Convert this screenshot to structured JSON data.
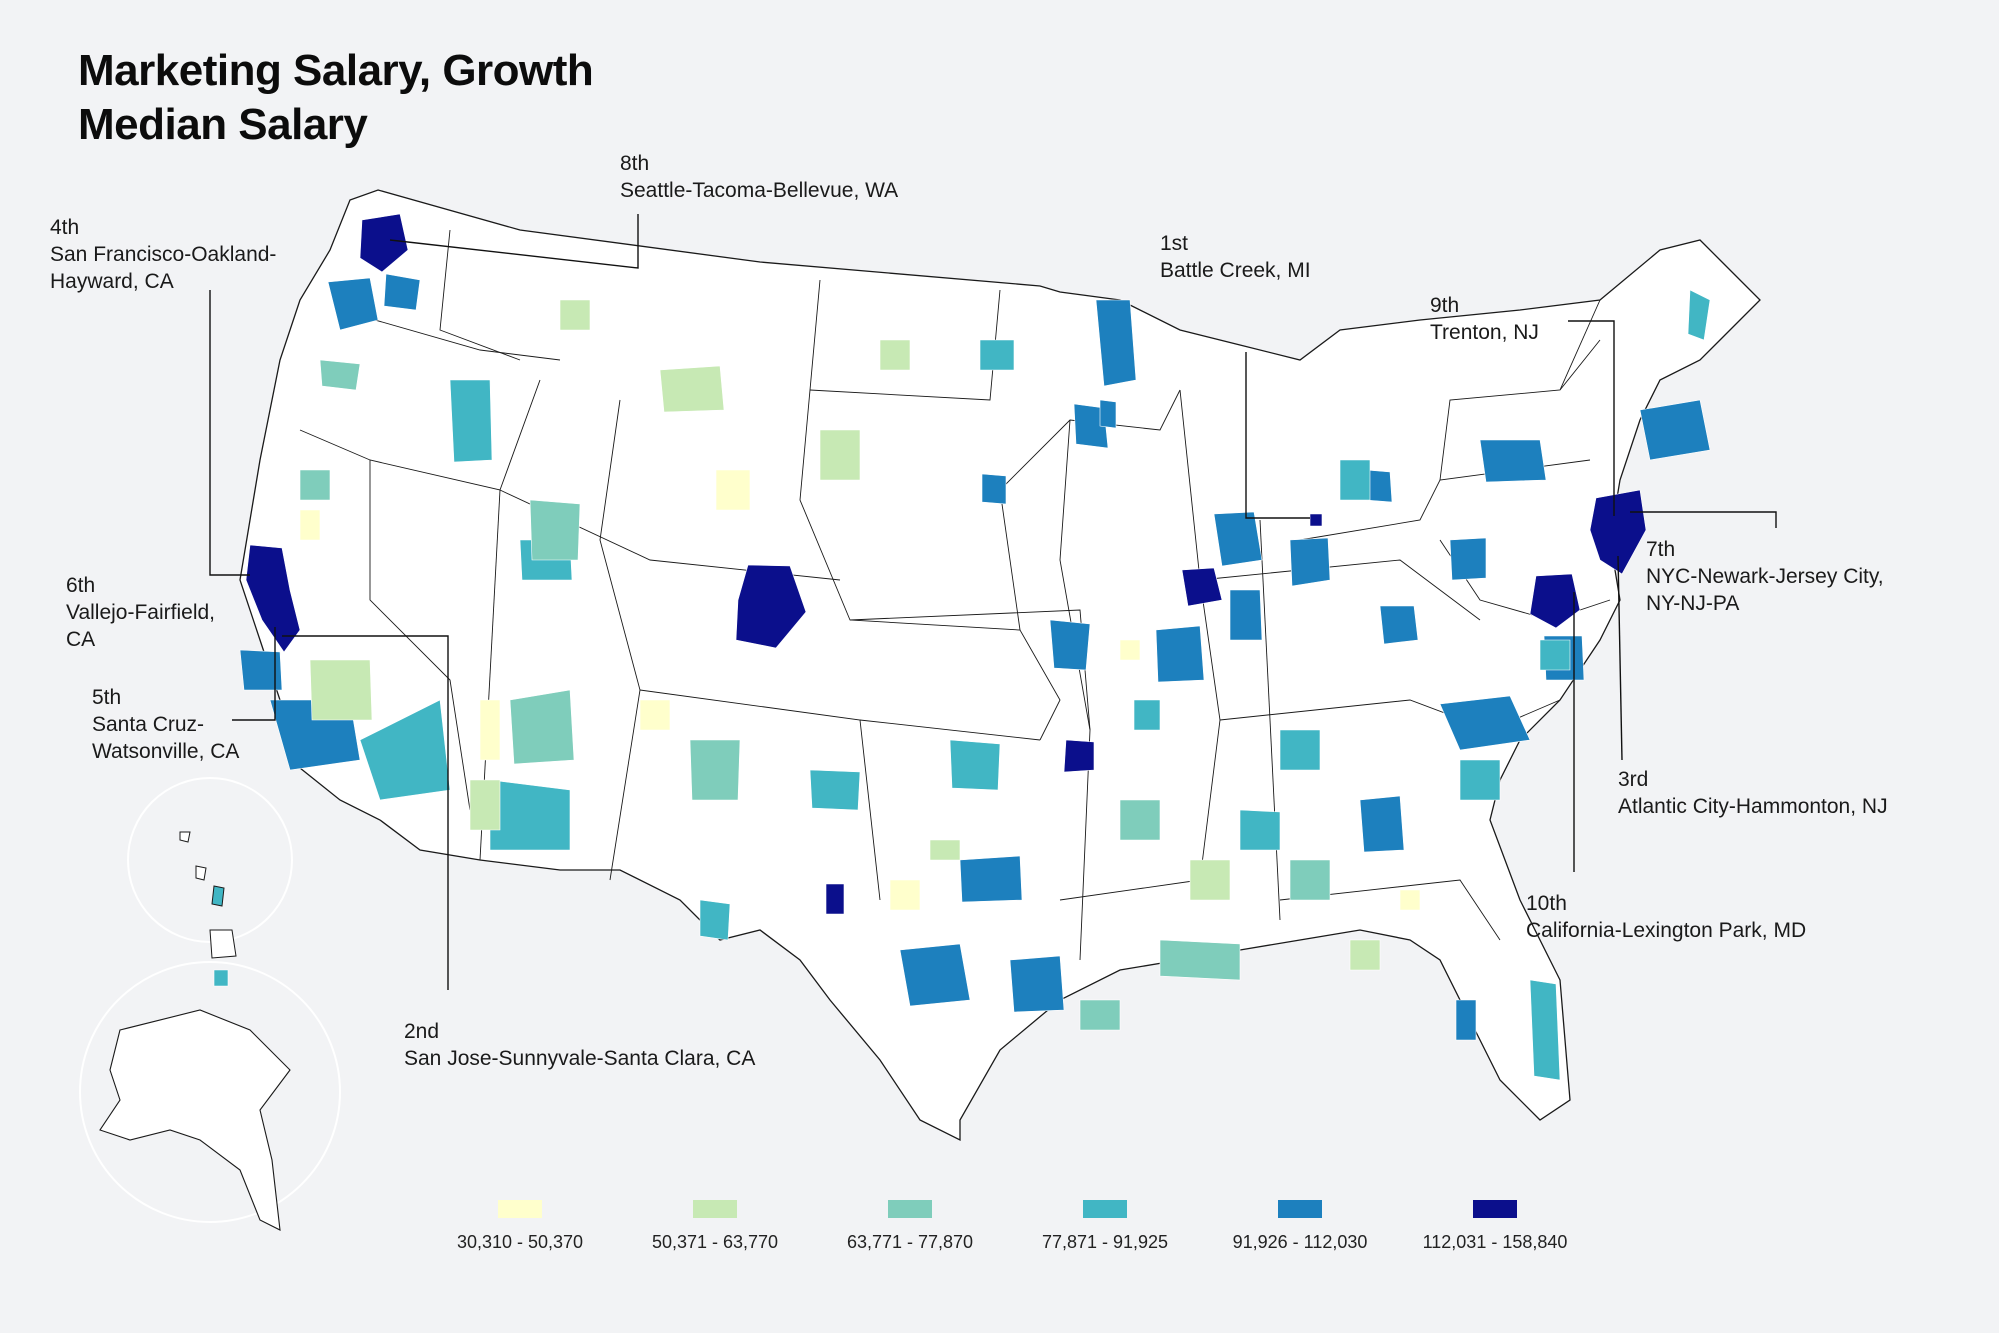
{
  "title": {
    "line1": "Marketing Salary, Growth",
    "line2": "Median Salary"
  },
  "colors": {
    "background": "#f2f3f5",
    "state_fill": "#ffffff",
    "state_border": "#1a1a1a",
    "leader_line": "#111111"
  },
  "legend": [
    {
      "label": "30,310 - 50,370",
      "color": "#ffffcc"
    },
    {
      "label": "50,371 - 63,770",
      "color": "#c7e9b4"
    },
    {
      "label": "63,771 - 77,870",
      "color": "#7fcdbb"
    },
    {
      "label": "77,871 - 91,925",
      "color": "#41b6c4"
    },
    {
      "label": "91,926 - 112,030",
      "color": "#1d80be"
    },
    {
      "label": "112,031 - 158,840",
      "color": "#0b0f8c"
    }
  ],
  "callouts": [
    {
      "rank": "1st",
      "name": "Battle Creek, MI"
    },
    {
      "rank": "2nd",
      "name": "San Jose-Sunnyvale-Santa Clara, CA"
    },
    {
      "rank": "3rd",
      "name": "Atlantic City-Hammonton, NJ"
    },
    {
      "rank": "4th",
      "name": "San Francisco-Oakland-",
      "name2": "Hayward, CA"
    },
    {
      "rank": "5th",
      "name": "Santa Cruz-",
      "name2": "Watsonville, CA"
    },
    {
      "rank": "6th",
      "name": "Vallejo-Fairfield,",
      "name2": "CA"
    },
    {
      "rank": "7th",
      "name": "NYC-Newark-Jersey City,",
      "name2": "NY-NJ-PA"
    },
    {
      "rank": "8th",
      "name": "Seattle-Tacoma-Bellevue, WA"
    },
    {
      "rank": "9th",
      "name": "Trenton, NJ"
    },
    {
      "rank": "10th",
      "name": "California-Lexington Park, MD"
    }
  ]
}
